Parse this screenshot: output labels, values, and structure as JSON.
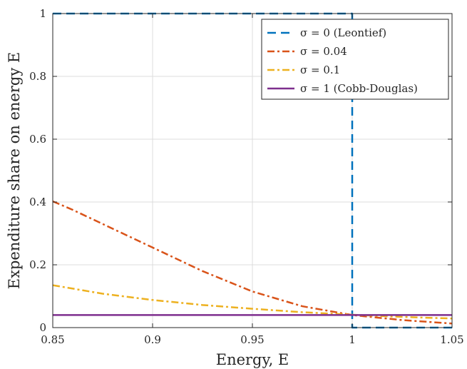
{
  "chart_data": {
    "type": "line",
    "xlabel": "Energy, E",
    "ylabel": "Expenditure share on energy E",
    "xlim": [
      0.85,
      1.05
    ],
    "ylim": [
      0,
      1
    ],
    "x_ticks": [
      0.85,
      0.9,
      0.95,
      1,
      1.05
    ],
    "x_tick_labels": [
      "0.85",
      "0.9",
      "0.95",
      "1",
      "1.05"
    ],
    "y_ticks": [
      0,
      0.2,
      0.4,
      0.6,
      0.8,
      1
    ],
    "y_tick_labels": [
      "0",
      "0.2",
      "0.4",
      "0.6",
      "0.8",
      "1"
    ],
    "grid": true,
    "legend_position": "top-right",
    "series": [
      {
        "name": "σ = 0 (Leontief)",
        "color": "#0072BD",
        "dash": "dashed",
        "x": [
          0.85,
          1.0,
          1.0,
          1.05
        ],
        "y": [
          1.0,
          1.0,
          0.0,
          0.0
        ]
      },
      {
        "name": "σ = 0.04",
        "color": "#D95319",
        "dash": "dashdot",
        "x": [
          0.85,
          0.86,
          0.875,
          0.9,
          0.925,
          0.95,
          0.975,
          1.0,
          1.025,
          1.05
        ],
        "y": [
          0.402,
          0.375,
          0.33,
          0.255,
          0.18,
          0.115,
          0.068,
          0.04,
          0.024,
          0.013
        ]
      },
      {
        "name": "σ = 0.1",
        "color": "#EDB120",
        "dash": "dashdot",
        "x": [
          0.85,
          0.875,
          0.9,
          0.925,
          0.95,
          0.975,
          1.0,
          1.025,
          1.05
        ],
        "y": [
          0.135,
          0.108,
          0.088,
          0.072,
          0.06,
          0.049,
          0.041,
          0.034,
          0.029
        ]
      },
      {
        "name": "σ = 1 (Cobb-Douglas)",
        "color": "#7E2F8E",
        "dash": "solid",
        "x": [
          0.85,
          1.05
        ],
        "y": [
          0.04,
          0.04
        ]
      }
    ]
  }
}
